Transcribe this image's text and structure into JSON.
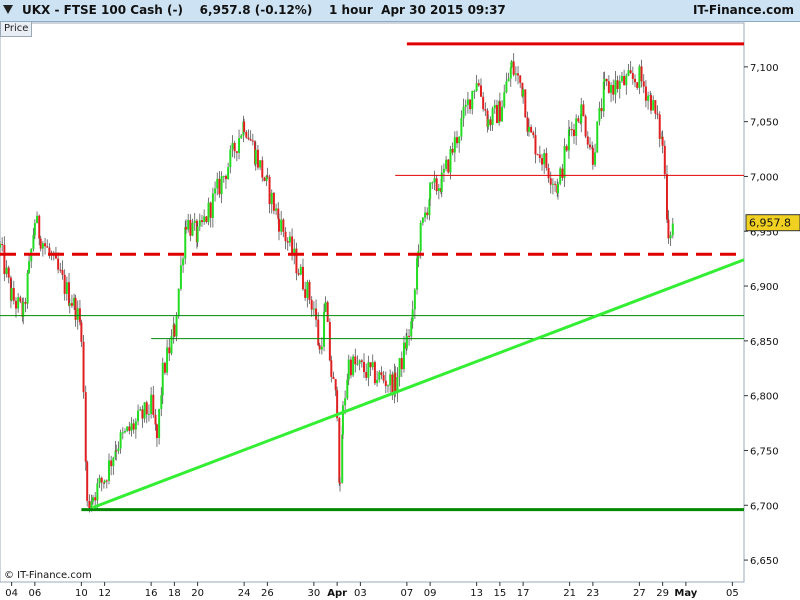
{
  "header": {
    "title": "UKX - FTSE 100 Cash (-)    6,957.8 (-0.12%)    1 hour  Apr 30 2015 09:37",
    "brand": "IT-Finance.com"
  },
  "price_tab": "Price",
  "footer": {
    "copyright": "© IT-Finance.com"
  },
  "colors": {
    "up": "#22dd22",
    "down": "#e02020",
    "wick": "#555555",
    "resistance": "#e00000",
    "support": "#008800",
    "trend": "#33ee33",
    "axis_bg": "#ffffff",
    "header_bg": "#cde3f3",
    "last_price_bg": "#f0d020"
  },
  "chart_data": {
    "type": "candlestick",
    "timeframe": "1 hour",
    "instrument": "UKX - FTSE 100 Cash (-)",
    "last_price": 6957.8,
    "last_price_label": "6,957.8",
    "change_label": "-0.12%",
    "ylim": [
      6630,
      7140
    ],
    "y_ticks": [
      6650,
      6700,
      6750,
      6800,
      6850,
      6900,
      6950,
      7000,
      7050,
      7100
    ],
    "y_tick_labels": [
      "6,650",
      "6,700",
      "6,750",
      "6,800",
      "6,850",
      "6,900",
      "6,950",
      "7,000",
      "7,050",
      "7,100"
    ],
    "x_ticks": [
      "04",
      "06",
      "10",
      "12",
      "16",
      "18",
      "20",
      "24",
      "26",
      "30",
      "Apr",
      "03",
      "07",
      "09",
      "13",
      "15",
      "17",
      "21",
      "23",
      "27",
      "29",
      "May",
      "05"
    ],
    "x_range_dates": [
      "2015-03-03",
      "2015-05-06"
    ],
    "x_tick_dates": [
      "2015-03-04",
      "2015-03-06",
      "2015-03-10",
      "2015-03-12",
      "2015-03-16",
      "2015-03-18",
      "2015-03-20",
      "2015-03-24",
      "2015-03-26",
      "2015-03-30",
      "2015-04-01",
      "2015-04-03",
      "2015-04-07",
      "2015-04-09",
      "2015-04-13",
      "2015-04-15",
      "2015-04-17",
      "2015-04-21",
      "2015-04-23",
      "2015-04-27",
      "2015-04-29",
      "2015-05-01",
      "2015-05-05"
    ],
    "price_path": [
      [
        "2015-03-03",
        6935
      ],
      [
        "2015-03-04",
        6890
      ],
      [
        "2015-03-05",
        6875
      ],
      [
        "2015-03-05T12",
        6915
      ],
      [
        "2015-03-06",
        6960
      ],
      [
        "2015-03-06T12",
        6945
      ],
      [
        "2015-03-09",
        6890
      ],
      [
        "2015-03-09T12",
        6880
      ],
      [
        "2015-03-10",
        6860
      ],
      [
        "2015-03-10T12",
        6700
      ],
      [
        "2015-03-11",
        6710
      ],
      [
        "2015-03-12",
        6725
      ],
      [
        "2015-03-13",
        6755
      ],
      [
        "2015-03-16",
        6790
      ],
      [
        "2015-03-16T12",
        6760
      ],
      [
        "2015-03-17",
        6820
      ],
      [
        "2015-03-18",
        6860
      ],
      [
        "2015-03-19",
        6960
      ],
      [
        "2015-03-20",
        6945
      ],
      [
        "2015-03-23",
        7020
      ],
      [
        "2015-03-24",
        7050
      ],
      [
        "2015-03-25",
        7020
      ],
      [
        "2015-03-26",
        6990
      ],
      [
        "2015-03-27",
        6960
      ],
      [
        "2015-03-30",
        6880
      ],
      [
        "2015-03-30T12",
        6840
      ],
      [
        "2015-03-31",
        6880
      ],
      [
        "2015-03-31T12",
        6820
      ],
      [
        "2015-04-01",
        6790
      ],
      [
        "2015-04-01T06",
        6710
      ],
      [
        "2015-04-01T12",
        6785
      ],
      [
        "2015-04-02",
        6830
      ],
      [
        "2015-04-06",
        6810
      ],
      [
        "2015-04-07",
        6850
      ],
      [
        "2015-04-07T12",
        6870
      ],
      [
        "2015-04-08",
        6940
      ],
      [
        "2015-04-09",
        6985
      ],
      [
        "2015-04-10",
        6995
      ],
      [
        "2015-04-13",
        7090
      ],
      [
        "2015-04-14",
        7050
      ],
      [
        "2015-04-15",
        7060
      ],
      [
        "2015-04-16",
        7100
      ],
      [
        "2015-04-17",
        7080
      ],
      [
        "2015-04-17T12",
        7040
      ],
      [
        "2015-04-20",
        6990
      ],
      [
        "2015-04-21",
        7040
      ],
      [
        "2015-04-22",
        7060
      ],
      [
        "2015-04-23",
        7020
      ],
      [
        "2015-04-24",
        7080
      ],
      [
        "2015-04-27",
        7090
      ],
      [
        "2015-04-28",
        7070
      ],
      [
        "2015-04-29",
        7030
      ],
      [
        "2015-04-29T12",
        6950
      ],
      [
        "2015-04-30",
        6957.8
      ]
    ],
    "lines": [
      {
        "name": "resistance",
        "style": "solid-thick",
        "color": "resistance",
        "y": 7121,
        "x_from": "2015-04-07",
        "x_to": "2015-05-06"
      },
      {
        "name": "7000-level",
        "style": "thin",
        "color": "resistance",
        "y": 7001,
        "x_from": "2015-04-06",
        "x_to": "2015-05-06"
      },
      {
        "name": "dashed-support",
        "style": "dashed-thick",
        "color": "resistance",
        "y": 6929,
        "x_from": "2015-03-03",
        "x_to": "2015-05-06"
      },
      {
        "name": "green-6873",
        "style": "thin",
        "color": "support",
        "y": 6873,
        "x_from": "2015-03-03",
        "x_to": "2015-05-06"
      },
      {
        "name": "green-6852",
        "style": "thin",
        "color": "support",
        "y": 6852,
        "x_from": "2015-03-16",
        "x_to": "2015-05-06"
      },
      {
        "name": "green-6696",
        "style": "solid-thick",
        "color": "support",
        "y": 6696,
        "x_from": "2015-03-10",
        "x_to": "2015-05-06"
      },
      {
        "name": "uptrend",
        "style": "solid-thick",
        "color": "trend",
        "y_from": 6698,
        "y_to": 6924,
        "x_from": "2015-03-11",
        "x_to": "2015-05-06"
      }
    ]
  }
}
